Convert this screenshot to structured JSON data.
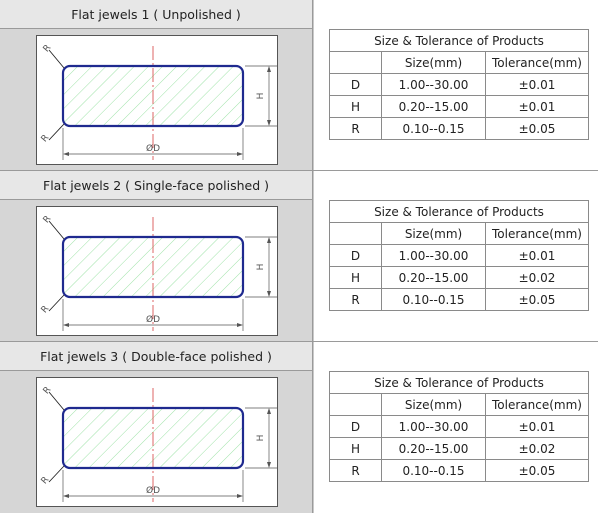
{
  "sections": [
    {
      "title": "Flat jewels 1 ( Unpolished )",
      "table": {
        "header": "Size & Tolerance of Products",
        "col_size": "Size(mm)",
        "col_tol": "Tolerance(mm)",
        "rows": [
          {
            "label": "D",
            "size": "1.00--30.00",
            "tol": "±0.01"
          },
          {
            "label": "H",
            "size": "0.20--15.00",
            "tol": "±0.01"
          },
          {
            "label": "R",
            "size": "0.10--0.15",
            "tol": "±0.05"
          }
        ]
      }
    },
    {
      "title": "Flat jewels 2 ( Single-face polished )",
      "table": {
        "header": "Size & Tolerance of Products",
        "col_size": "Size(mm)",
        "col_tol": "Tolerance(mm)",
        "rows": [
          {
            "label": "D",
            "size": "1.00--30.00",
            "tol": "±0.01"
          },
          {
            "label": "H",
            "size": "0.20--15.00",
            "tol": "±0.02"
          },
          {
            "label": "R",
            "size": "0.10--0.15",
            "tol": "±0.05"
          }
        ]
      }
    },
    {
      "title": "Flat jewels 3 ( Double-face polished )",
      "table": {
        "header": "Size & Tolerance of Products",
        "col_size": "Size(mm)",
        "col_tol": "Tolerance(mm)",
        "rows": [
          {
            "label": "D",
            "size": "1.00--30.00",
            "tol": "±0.01"
          },
          {
            "label": "H",
            "size": "0.20--15.00",
            "tol": "±0.02"
          },
          {
            "label": "R",
            "size": "0.10--0.15",
            "tol": "±0.05"
          }
        ]
      }
    }
  ],
  "drawing_labels": {
    "r_top": "R",
    "r_bottom": "R",
    "height": "H",
    "diameter": "ØD"
  },
  "colors": {
    "outline": "#1f2a8f",
    "hatch": "#9fe3a8",
    "center_line": "#d64040",
    "dimension": "#555555"
  }
}
